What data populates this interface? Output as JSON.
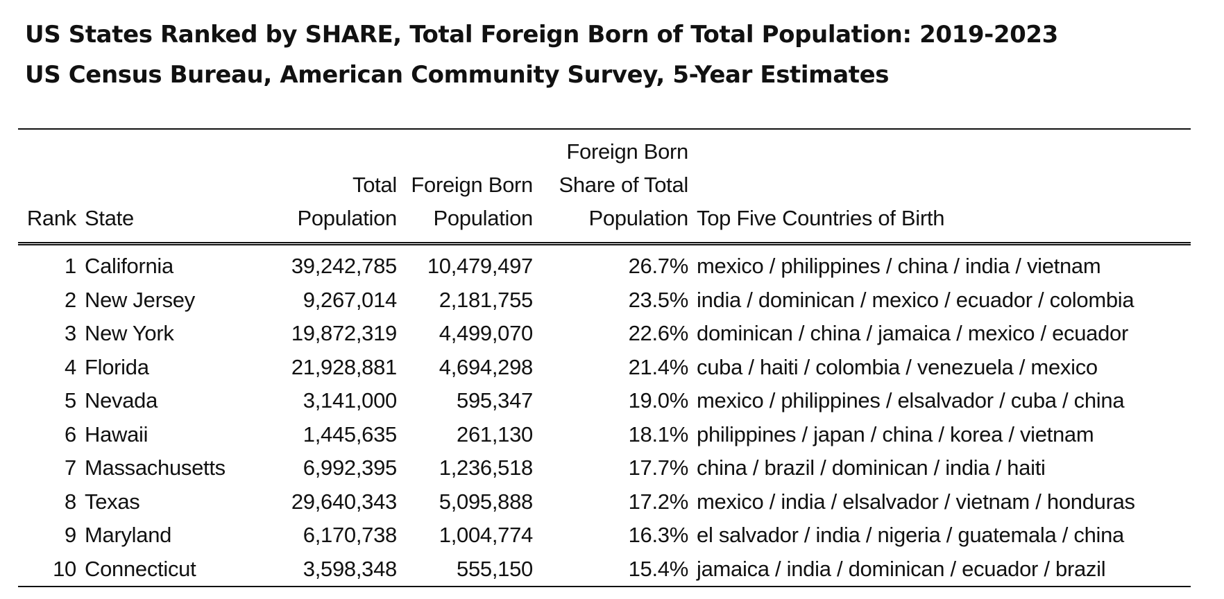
{
  "title": {
    "line1": "US States Ranked by SHARE, Total Foreign Born of Total Population: 2019-2023",
    "line2": "US Census Bureau, American Community Survey, 5-Year Estimates"
  },
  "columns": {
    "rank": "Rank",
    "state": "State",
    "total_population": [
      "Total",
      "Population"
    ],
    "foreign_born_population": [
      "Foreign Born",
      "Population"
    ],
    "share": [
      "Foreign Born",
      "Share of Total",
      "Population"
    ],
    "top_five": "Top Five Countries of Birth"
  },
  "rows": [
    {
      "rank": "1",
      "state": "California",
      "total": "39,242,785",
      "foreign_born": "10,479,497",
      "share": "26.7%",
      "countries": "mexico / philippines / china / india / vietnam"
    },
    {
      "rank": "2",
      "state": "New Jersey",
      "total": "9,267,014",
      "foreign_born": "2,181,755",
      "share": "23.5%",
      "countries": "india / dominican / mexico / ecuador / colombia"
    },
    {
      "rank": "3",
      "state": "New York",
      "total": "19,872,319",
      "foreign_born": "4,499,070",
      "share": "22.6%",
      "countries": "dominican / china / jamaica / mexico / ecuador"
    },
    {
      "rank": "4",
      "state": "Florida",
      "total": "21,928,881",
      "foreign_born": "4,694,298",
      "share": "21.4%",
      "countries": "cuba / haiti / colombia / venezuela / mexico"
    },
    {
      "rank": "5",
      "state": "Nevada",
      "total": "3,141,000",
      "foreign_born": "595,347",
      "share": "19.0%",
      "countries": "mexico / philippines / elsalvador / cuba / china"
    },
    {
      "rank": "6",
      "state": "Hawaii",
      "total": "1,445,635",
      "foreign_born": "261,130",
      "share": "18.1%",
      "countries": "philippines / japan / china / korea / vietnam"
    },
    {
      "rank": "7",
      "state": "Massachusetts",
      "total": "6,992,395",
      "foreign_born": "1,236,518",
      "share": "17.7%",
      "countries": "china / brazil / dominican / india / haiti"
    },
    {
      "rank": "8",
      "state": "Texas",
      "total": "29,640,343",
      "foreign_born": "5,095,888",
      "share": "17.2%",
      "countries": "mexico / india / elsalvador / vietnam / honduras"
    },
    {
      "rank": "9",
      "state": "Maryland",
      "total": "6,170,738",
      "foreign_born": "1,004,774",
      "share": "16.3%",
      "countries": "el salvador / india / nigeria / guatemala / china"
    },
    {
      "rank": "10",
      "state": "Connecticut",
      "total": "3,598,348",
      "foreign_born": "555,150",
      "share": "15.4%",
      "countries": "jamaica / india / dominican / ecuador / brazil"
    }
  ]
}
